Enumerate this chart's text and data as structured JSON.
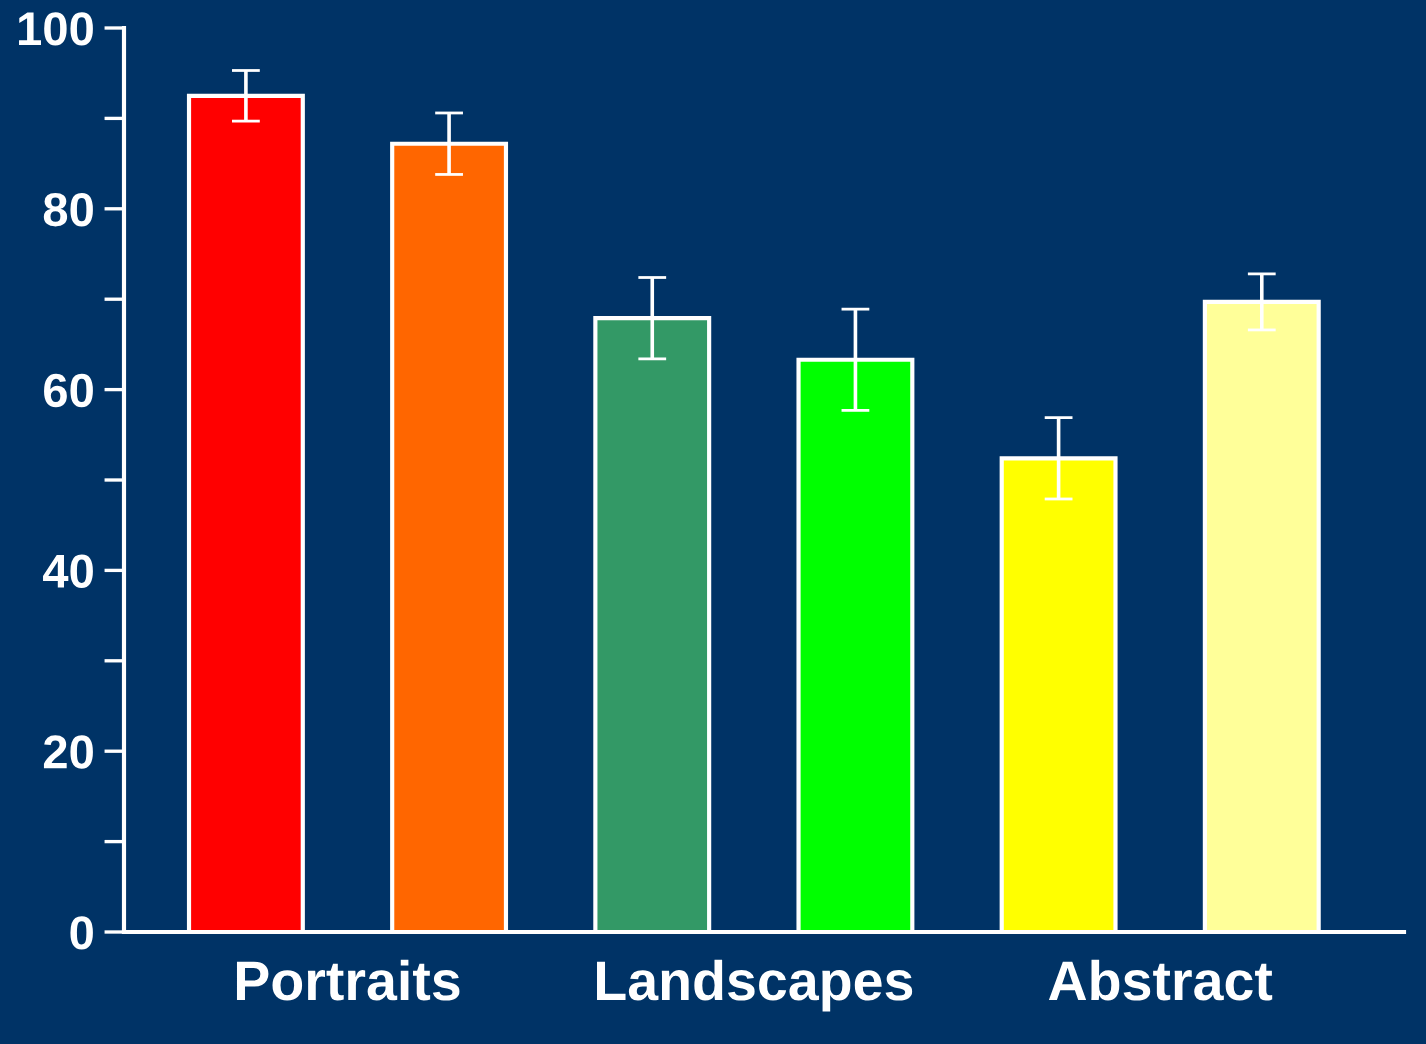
{
  "chart_data": {
    "type": "bar",
    "categories": [
      "Portraits",
      "Landscapes",
      "Abstract"
    ],
    "series": [
      {
        "colors": [
          "#ff0000",
          "#339966",
          "#ffff00"
        ],
        "values": [
          92.5,
          67.9,
          52.4
        ],
        "errors": [
          2.8,
          4.5,
          4.5
        ]
      },
      {
        "colors": [
          "#ff6600",
          "#00ff00",
          "#ffff99"
        ],
        "values": [
          87.2,
          63.3,
          69.7
        ],
        "errors": [
          3.4,
          5.6,
          3.1
        ]
      }
    ],
    "ylim": [
      0,
      100
    ],
    "yticks": [
      0,
      {
        "value": 10,
        "label": null
      },
      20,
      {
        "value": 30,
        "label": null
      },
      40,
      {
        "value": 50,
        "label": null
      },
      60,
      {
        "value": 70,
        "label": null
      },
      80,
      {
        "value": 90,
        "label": null
      },
      100
    ],
    "grid": false
  }
}
